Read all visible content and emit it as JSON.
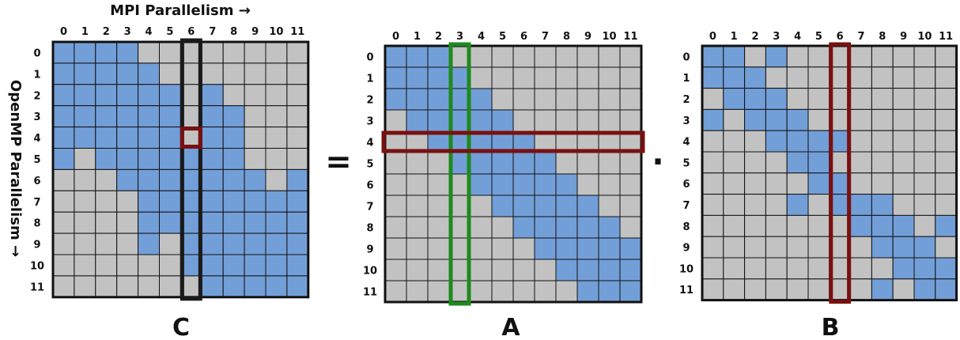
{
  "diagram": {
    "indices": [
      "0",
      "1",
      "2",
      "3",
      "4",
      "5",
      "6",
      "7",
      "8",
      "9",
      "10",
      "11"
    ],
    "x_axis_label": "MPI Parallelism →",
    "y_axis_label": "OpenMP Parallelism →",
    "equals": "=",
    "dot": "·",
    "colors": {
      "filled": "#739fd8",
      "empty": "#c2c2c2",
      "grid": "#111111",
      "col_highlight": "#1a1a1a",
      "red_highlight": "#7a1010",
      "green_highlight": "#1e8a1e"
    },
    "matrices": {
      "C": {
        "label": "C",
        "rows": [
          "111100000000",
          "111110000000",
          "111111010000",
          "111111011000",
          "111111011000",
          "101111111000",
          "000111111101",
          "000011111111",
          "000011111111",
          "000010111111",
          "000000111111",
          "000000011111"
        ],
        "highlights": [
          {
            "kind": "column",
            "index": 6,
            "color": "col_highlight"
          },
          {
            "kind": "cell",
            "row": 4,
            "col": 6,
            "color": "red_highlight"
          }
        ]
      },
      "A": {
        "label": "A",
        "rows": [
          "111000000000",
          "111100000000",
          "111110000000",
          "011111000000",
          "001111100000",
          "000111110000",
          "000011111000",
          "000001111100",
          "000000111110",
          "000000011111",
          "000000001111",
          "000000000111"
        ],
        "highlights": [
          {
            "kind": "column",
            "index": 3,
            "color": "green_highlight"
          },
          {
            "kind": "row",
            "index": 4,
            "color": "red_highlight"
          }
        ]
      },
      "B": {
        "label": "B",
        "rows": [
          "110100000000",
          "111000000000",
          "011100000000",
          "101110000000",
          "000111100000",
          "000011000000",
          "000001100000",
          "000010111000",
          "000000011101",
          "000000001110",
          "000000000111",
          "000000001011"
        ],
        "highlights": [
          {
            "kind": "column",
            "index": 6,
            "color": "red_highlight"
          }
        ]
      }
    }
  }
}
